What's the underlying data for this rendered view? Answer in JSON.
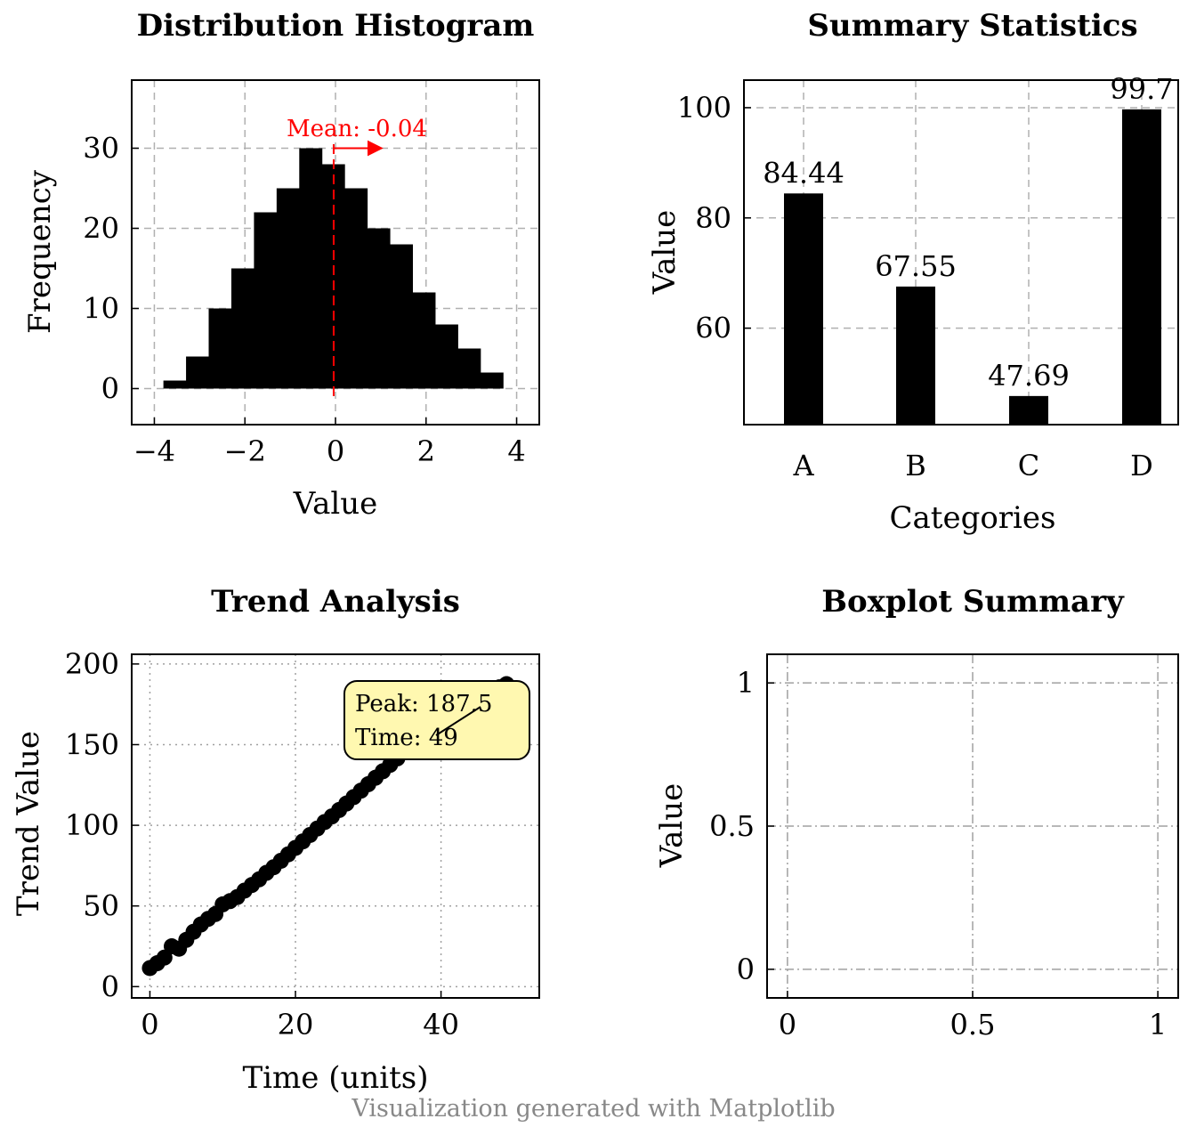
{
  "footer": "Visualization generated with Matplotlib",
  "chart_data": [
    {
      "type": "bar",
      "subtype": "histogram",
      "title": "Distribution Histogram",
      "xlabel": "Value",
      "ylabel": "Frequency",
      "xlim": [
        -4.5,
        4.5
      ],
      "ylim": [
        -4.5,
        38.5
      ],
      "xticks": [
        -4,
        -2,
        0,
        2,
        4
      ],
      "yticks": [
        0,
        10,
        20,
        30
      ],
      "grid": "dashed",
      "bin_edges": [
        -3.8,
        -3.3,
        -2.8,
        -2.3,
        -1.8,
        -1.3,
        -0.8,
        -0.3,
        0.2,
        0.7,
        1.2,
        1.7,
        2.2,
        2.7,
        3.2,
        3.7
      ],
      "values": [
        1,
        4,
        10,
        15,
        22,
        25,
        30,
        28,
        25,
        20,
        18,
        12,
        8,
        5,
        2
      ],
      "mean_line": {
        "value": -0.04,
        "label": "Mean: -0.04",
        "color": "#ff0000"
      }
    },
    {
      "type": "bar",
      "title": "Summary Statistics",
      "xlabel": "Categories",
      "ylabel": "Value",
      "categories": [
        "A",
        "B",
        "C",
        "D"
      ],
      "values": [
        84.44,
        67.55,
        47.69,
        99.7
      ],
      "value_labels": [
        "84.44",
        "67.55",
        "47.69",
        "99.7"
      ],
      "ylim": [
        42.5,
        105
      ],
      "yticks": [
        60,
        80,
        100
      ],
      "grid": "dashed"
    },
    {
      "type": "scatter",
      "title": "Trend Analysis",
      "xlabel": "Time (units)",
      "ylabel": "Trend Value",
      "xlim": [
        -2.5,
        53.5
      ],
      "ylim": [
        -7,
        206
      ],
      "xticks": [
        0,
        20,
        40
      ],
      "yticks": [
        0,
        50,
        100,
        150,
        200
      ],
      "grid": "dotted",
      "x": [
        0,
        1,
        2,
        3,
        4,
        5,
        6,
        7,
        8,
        9,
        10,
        11,
        12,
        13,
        14,
        15,
        16,
        17,
        18,
        19,
        20,
        21,
        22,
        23,
        24,
        25,
        26,
        27,
        28,
        29,
        30,
        31,
        32,
        33,
        34,
        35,
        36,
        37,
        38,
        39,
        40,
        41,
        42,
        43,
        44,
        45,
        46,
        47,
        48,
        49
      ],
      "y": [
        11.5,
        14.5,
        18,
        25,
        23.5,
        29,
        34,
        38.5,
        42,
        45,
        51,
        53,
        55.5,
        59.5,
        63,
        66.5,
        70.5,
        74,
        78,
        82,
        86,
        90,
        94,
        98,
        102,
        105.5,
        109.5,
        113.5,
        117.5,
        121.5,
        125.5,
        129.5,
        133.5,
        137.5,
        141.5,
        145.5,
        149.5,
        153.5,
        157.5,
        160.5,
        164.5,
        168,
        171.5,
        175,
        178,
        181,
        183,
        184.5,
        185.5,
        187.5
      ],
      "annotation": {
        "line1": "Peak: 187.5",
        "line2": "Time: 49",
        "fill": "#fff8b0"
      }
    },
    {
      "type": "boxplot",
      "title": "Boxplot Summary",
      "xlabel": "",
      "ylabel": "Value",
      "xlim": [
        -0.055,
        1.055
      ],
      "ylim": [
        -0.1,
        1.1
      ],
      "xticks": [
        0,
        0.5,
        1
      ],
      "xtick_labels": [
        "0",
        "0.5",
        "1"
      ],
      "yticks": [
        0,
        0.5,
        1
      ],
      "ytick_labels": [
        "0",
        "0.5",
        "1"
      ],
      "grid": "dashdot",
      "series": []
    }
  ]
}
